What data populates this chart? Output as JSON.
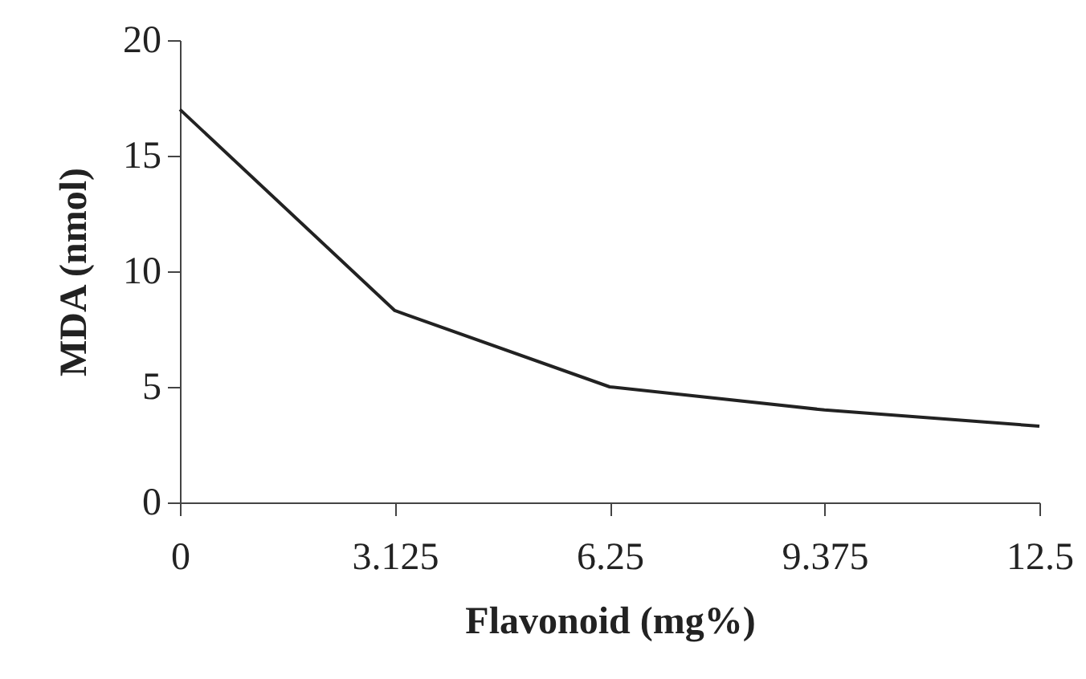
{
  "chart_data": {
    "type": "line",
    "xlabel": "Flavonoid (mg%)",
    "ylabel": "MDA (nmol)",
    "x": [
      0,
      3.125,
      6.25,
      9.375,
      12.5
    ],
    "series": [
      {
        "color": "#222222",
        "values": [
          17,
          8.3,
          5,
          4,
          3.3
        ]
      }
    ],
    "xlim": [
      0,
      12.5
    ],
    "xticks": [
      0,
      3.125,
      6.25,
      9.375,
      12.5
    ],
    "ylim": [
      0,
      20
    ],
    "yticks": [
      0,
      5,
      10,
      15,
      20
    ],
    "grid": false,
    "legend": false,
    "marker": "none",
    "line_style": "solid"
  }
}
